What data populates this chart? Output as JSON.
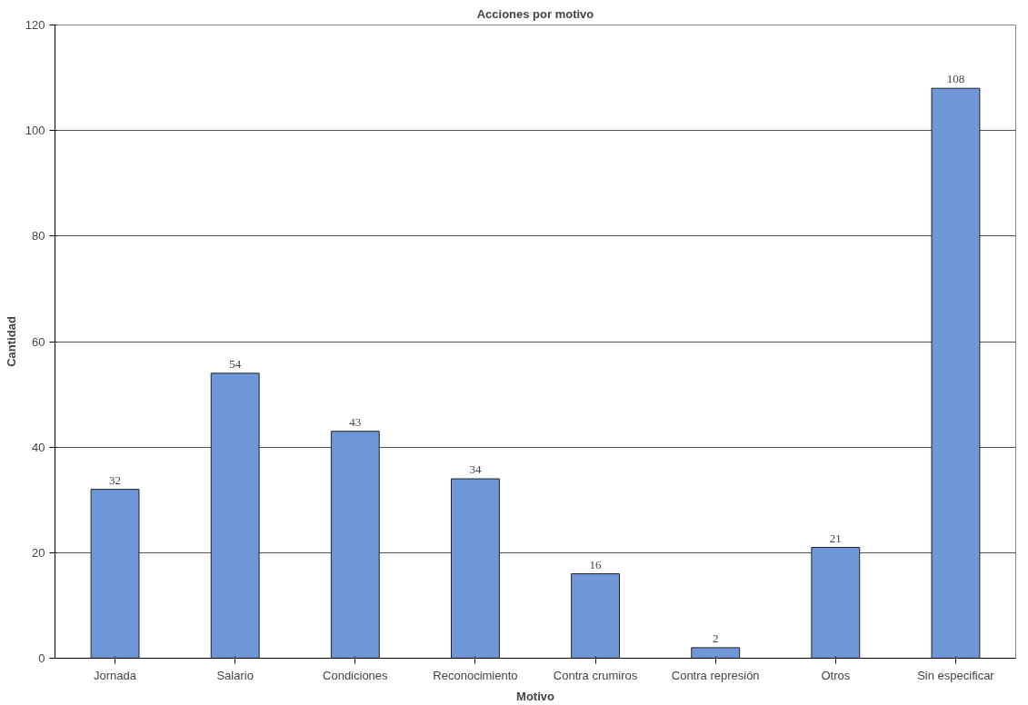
{
  "chart_data": {
    "type": "bar",
    "title": "Acciones por motivo",
    "xlabel": "Motivo",
    "ylabel": "Cantidad",
    "categories": [
      "Jornada",
      "Salario",
      "Condiciones",
      "Reconocimiento",
      "Contra crumiros",
      "Contra represión",
      "Otros",
      "Sin especificar"
    ],
    "values": [
      32,
      54,
      43,
      34,
      16,
      2,
      21,
      108
    ],
    "color": "#6f97d8",
    "ylim": [
      0,
      120
    ],
    "yticks": [
      0,
      20,
      40,
      60,
      80,
      100,
      120
    ],
    "grid": "y",
    "data_labels": true
  }
}
